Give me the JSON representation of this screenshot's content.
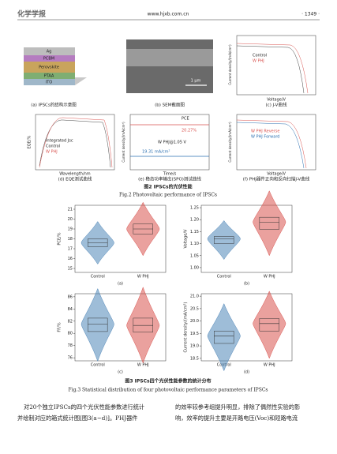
{
  "header": {
    "journal": "化学学报",
    "url": "www.hjxb.com.cn",
    "page": "· 1349 ·"
  },
  "figure2": {
    "panels": [
      {
        "caption": "(a) IPSCs的结构示意图",
        "layers": [
          "Ag",
          "PCBM",
          "Perovskite",
          "PTAA",
          "ITO"
        ]
      },
      {
        "caption": "(b) SEM截面图",
        "scale": "1 μm"
      },
      {
        "caption": "(c) J-V曲线",
        "xlabel": "Voltage/V",
        "ylabel": "Current density/(mA/cm²)",
        "legend": [
          "Control",
          "W PHJ"
        ]
      },
      {
        "caption": "(d) EQE测试曲线",
        "xlabel": "Wavelength/nm",
        "ylabel": "EQE/%",
        "legend": [
          "Integrated Jsc",
          "Control",
          "W PHJ"
        ]
      },
      {
        "caption": "(e) 稳态功率输出(SPO)测试曲线",
        "xlabel": "Time/s",
        "ylabel": "Current density/(mA/cm²)",
        "notes": [
          "PCE",
          "20.27%",
          "W PHJ@1.05 V",
          "19.31 mA/cm²"
        ]
      },
      {
        "caption": "(f) PHJ器件正向和反向扫描J-V曲线",
        "xlabel": "Voltage/V",
        "ylabel": "Current density/(mA/cm²)",
        "legend": [
          "W PHJ Reverse",
          "W PHJ Forward"
        ]
      }
    ],
    "caption_cn": "图2  IPSCs的光伏性能",
    "caption_en": "Fig.2  Photovoltaic performance of IPSCs"
  },
  "figure3": {
    "categories": [
      "Control",
      "W PHJ"
    ],
    "colors": [
      "#4f86b8",
      "#d9534f"
    ],
    "panels": [
      {
        "type": "violin",
        "label": "(a)",
        "ylabel": "PCE/%",
        "ylim": [
          14.6,
          21.4
        ],
        "yticks": [
          15,
          16,
          17,
          18,
          19,
          20,
          21
        ],
        "boxes": [
          {
            "q1": 17.2,
            "median": 17.6,
            "q3": 18.0
          },
          {
            "q1": 18.5,
            "median": 19.0,
            "q3": 19.5
          }
        ]
      },
      {
        "type": "violin",
        "label": "(b)",
        "ylabel": "Voltage/V",
        "ylim": [
          0.98,
          1.26
        ],
        "yticks": [
          {
            "value": 1,
            "label": "1.00"
          },
          1.05,
          {
            "value": 1.1,
            "label": "1.10"
          },
          1.15,
          {
            "value": 1.2,
            "label": "1.20"
          },
          1.25
        ],
        "boxes": [
          {
            "q1": 1.1,
            "median": 1.12,
            "q3": 1.13
          },
          {
            "q1": 1.16,
            "median": 1.19,
            "q3": 1.21
          }
        ]
      },
      {
        "type": "violin",
        "label": "(c)",
        "ylabel": "FF/%",
        "ylim": [
          75.5,
          86.5
        ],
        "yticks": [
          76,
          78,
          80,
          82,
          84,
          86
        ],
        "boxes": [
          {
            "q1": 80.3,
            "median": 81.5,
            "q3": 82.5
          },
          {
            "q1": 80.2,
            "median": 81.3,
            "q3": 82.5
          }
        ]
      },
      {
        "type": "violin",
        "label": "(d)",
        "ylabel": "Current density/(mA/cm²)",
        "ylim": [
          18.4,
          21.1
        ],
        "yticks": [
          18.5,
          {
            "value": 19,
            "label": "19.0"
          },
          19.5,
          {
            "value": 20,
            "label": "20.0"
          },
          20.5,
          {
            "value": 21,
            "label": "21.0"
          }
        ],
        "boxes": [
          {
            "q1": 19.1,
            "median": 19.4,
            "q3": 19.6
          },
          {
            "q1": 19.6,
            "median": 19.9,
            "q3": 20.1
          }
        ]
      }
    ],
    "caption_cn": "图3  IPSCs四个光伏性能参数的统计分布",
    "caption_en": "Fig.3  Statistical distribution of four photovoltaic performance parameters of IPSCs"
  },
  "body": {
    "left": [
      "对20个独立IPSCs的四个光伏性能参数进行统计",
      "并绘制对应的箱式统计图[图3(a~d)]。PHJ器件"
    ],
    "right": [
      "的效率较参考组提升明显，排除了偶然性实验的影",
      "响，效率的提升主要是开路电压(Voc)和短路电流"
    ]
  }
}
